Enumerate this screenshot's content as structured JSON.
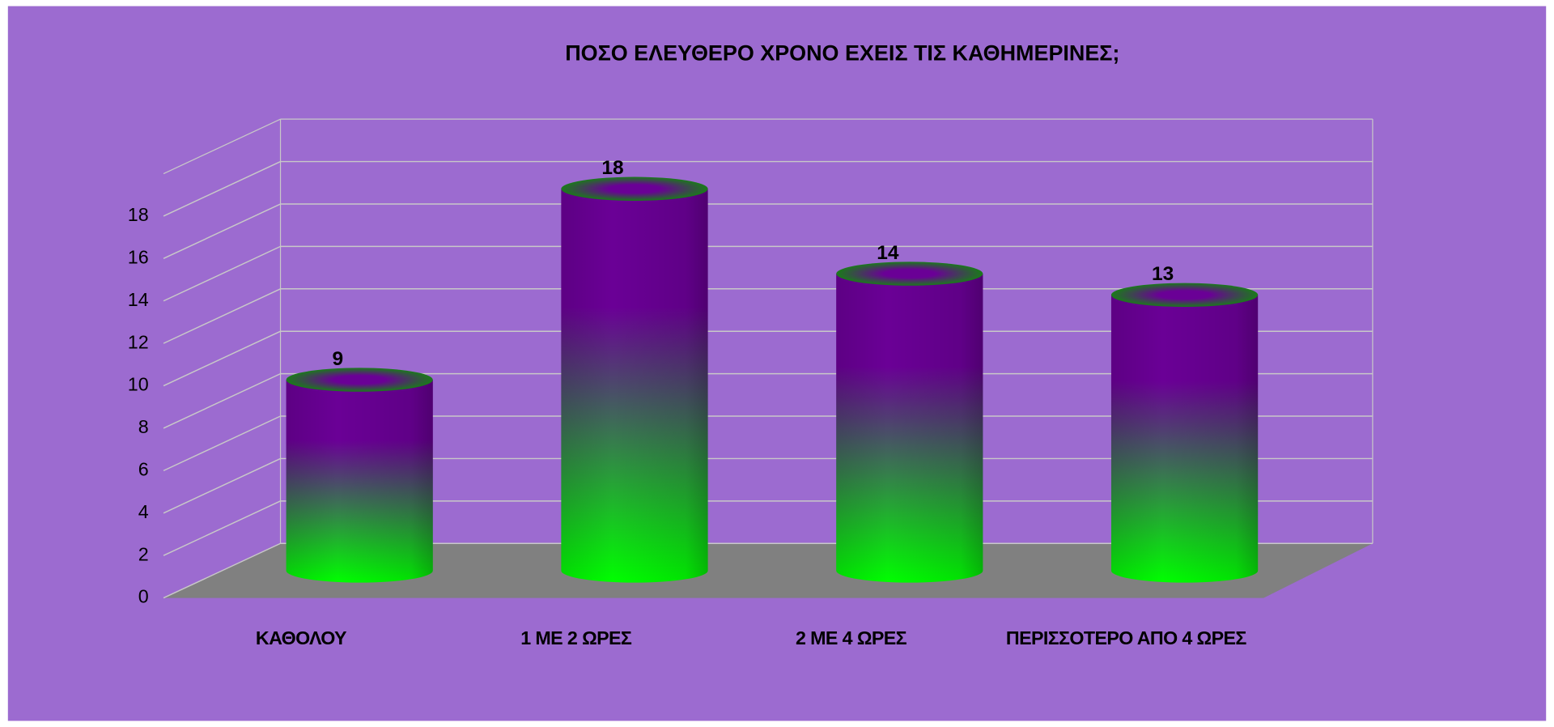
{
  "chart_data": {
    "type": "bar",
    "title": "ΠΟΣΟ ΕΛΕΥΘΕΡΟ ΧΡΟΝΟ ΕΧΕΙΣ ΤΙΣ ΚΑΘΗΜΕΡΙΝΕΣ;",
    "categories": [
      "ΚΑΘΟΛΟΥ",
      "1 ΜΕ 2 ΩΡΕΣ",
      "2 ΜΕ 4 ΩΡΕΣ",
      "ΠΕΡΙΣΣΟΤΕΡΟ ΑΠΟ 4 ΩΡΕΣ"
    ],
    "values": [
      9,
      18,
      14,
      13
    ],
    "color": "#00ff00",
    "top_color": "#6a0096",
    "ylim": [
      0,
      20
    ],
    "yticks": [
      0,
      2,
      4,
      6,
      8,
      10,
      12,
      14,
      16,
      18
    ],
    "grid": true
  }
}
